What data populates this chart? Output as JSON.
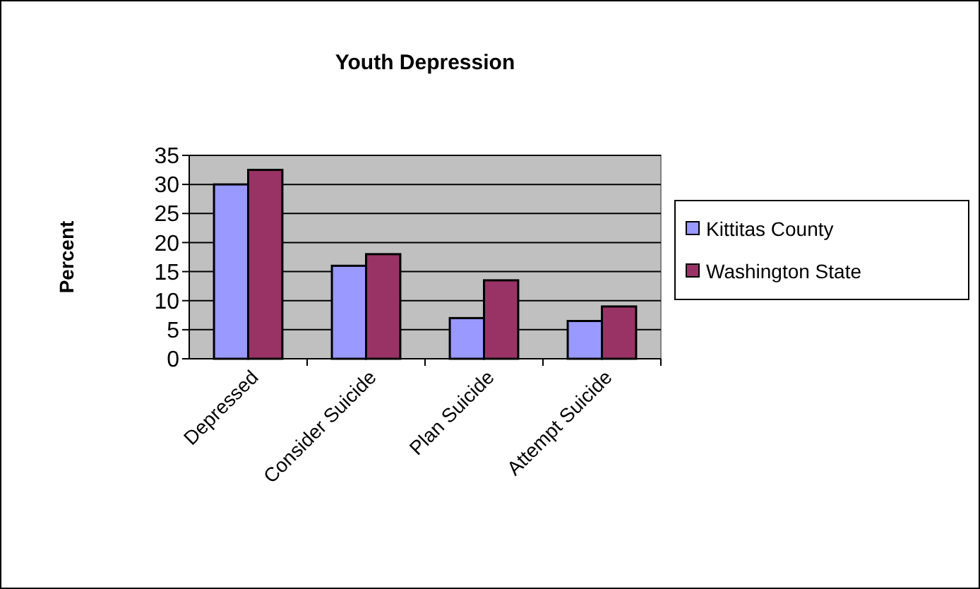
{
  "chart_data": {
    "type": "bar",
    "title": "Youth Depression",
    "ylabel": "Percent",
    "categories": [
      "Depressed",
      "Consider Suicide",
      "Plan Suicide",
      "Attempt Suicide"
    ],
    "series": [
      {
        "name": "Kittitas County",
        "color": "#9999ff",
        "values": [
          30,
          16,
          7,
          6.5
        ]
      },
      {
        "name": "Washington State",
        "color": "#993366",
        "values": [
          32.5,
          18,
          13.5,
          9
        ]
      }
    ],
    "ylim": [
      0,
      35
    ],
    "yticks": [
      0,
      5,
      10,
      15,
      20,
      25,
      30,
      35
    ],
    "grid": "y",
    "legend": "right"
  }
}
